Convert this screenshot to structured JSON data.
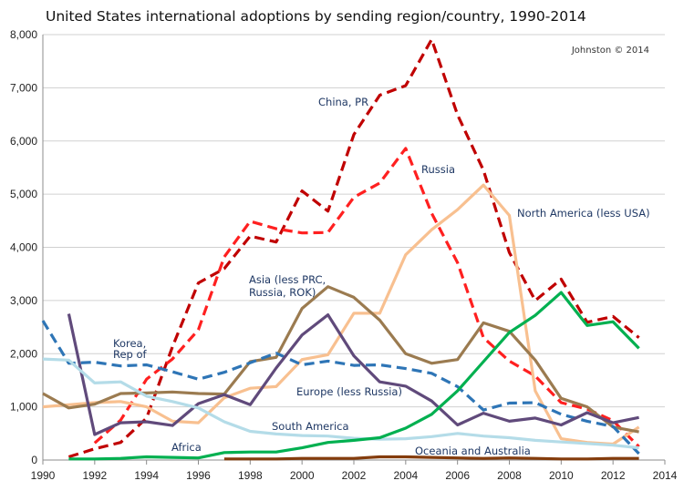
{
  "chart_data": {
    "type": "line",
    "title": "United States international adoptions by sending region/country, 1990-2014",
    "credit": "Johnston © 2014",
    "xlabel": "",
    "ylabel": "",
    "xlim": [
      1990,
      2014
    ],
    "ylim": [
      0,
      8000
    ],
    "x_ticks": [
      1990,
      1992,
      1994,
      1996,
      1998,
      2000,
      2002,
      2004,
      2006,
      2008,
      2010,
      2012,
      2014
    ],
    "y_ticks": [
      0,
      1000,
      2000,
      3000,
      4000,
      5000,
      6000,
      7000,
      8000
    ],
    "y_tick_labels": [
      "0",
      "1,000",
      "2,000",
      "3,000",
      "4,000",
      "5,000",
      "6,000",
      "7,000",
      "8,000"
    ],
    "grid": "horizontal",
    "legend": "none (inline labels)",
    "series": [
      {
        "name": "China, PR",
        "color": "#c00000",
        "dash": true,
        "x": [
          1991,
          1992,
          1993,
          1994,
          1995,
          1996,
          1997,
          1998,
          1999,
          2000,
          2001,
          2002,
          2003,
          2004,
          2005,
          2006,
          2007,
          2008,
          2009,
          2010,
          2011,
          2012,
          2013
        ],
        "values": [
          60,
          210,
          330,
          790,
          2130,
          3330,
          3600,
          4210,
          4100,
          5060,
          4680,
          6120,
          6860,
          7040,
          7910,
          6490,
          5450,
          3900,
          3000,
          3400,
          2590,
          2700,
          2300
        ]
      },
      {
        "name": "Russia",
        "color": "#ff2020",
        "dash": true,
        "x": [
          1992,
          1993,
          1994,
          1995,
          1996,
          1997,
          1998,
          1999,
          2000,
          2001,
          2002,
          2003,
          2004,
          2005,
          2006,
          2007,
          2008,
          2009,
          2010,
          2011,
          2012,
          2013
        ],
        "values": [
          320,
          750,
          1520,
          1900,
          2450,
          3820,
          4490,
          4350,
          4270,
          4280,
          4940,
          5210,
          5860,
          4640,
          3710,
          2300,
          1860,
          1580,
          1080,
          960,
          740,
          250
        ]
      },
      {
        "name": "North America (less USA)",
        "color": "#f8c090",
        "dash": false,
        "x": [
          1990,
          1991,
          1992,
          1993,
          1994,
          1995,
          1996,
          1997,
          1998,
          1999,
          2000,
          2001,
          2002,
          2003,
          2004,
          2005,
          2006,
          2007,
          2008,
          2009,
          2010,
          2011,
          2012,
          2013
        ],
        "values": [
          1000,
          1040,
          1080,
          1100,
          1000,
          730,
          700,
          1170,
          1350,
          1380,
          1890,
          1980,
          2760,
          2760,
          3860,
          4330,
          4710,
          5170,
          4600,
          1300,
          400,
          330,
          300,
          620
        ]
      },
      {
        "name": "Asia (less PRC, Russia, ROK)",
        "color": "#9b7b50",
        "dash": false,
        "x": [
          1990,
          1991,
          1992,
          1993,
          1994,
          1995,
          1996,
          1997,
          1998,
          1999,
          2000,
          2001,
          2002,
          2003,
          2004,
          2005,
          2006,
          2007,
          2008,
          2009,
          2010,
          2011,
          2012,
          2013
        ],
        "values": [
          1250,
          980,
          1050,
          1250,
          1260,
          1280,
          1250,
          1240,
          1850,
          1930,
          2850,
          3260,
          3060,
          2630,
          2000,
          1820,
          1890,
          2580,
          2420,
          1880,
          1160,
          1000,
          620,
          530
        ]
      },
      {
        "name": "Korea, Rep of",
        "color": "#2e75b6",
        "dash": true,
        "x": [
          1990,
          1991,
          1992,
          1993,
          1994,
          1995,
          1996,
          1997,
          1998,
          1999,
          2000,
          2001,
          2002,
          2003,
          2004,
          2005,
          2006,
          2007,
          2008,
          2009,
          2010,
          2011,
          2012,
          2013
        ],
        "values": [
          2620,
          1820,
          1840,
          1770,
          1790,
          1660,
          1520,
          1650,
          1830,
          2010,
          1790,
          1860,
          1780,
          1790,
          1720,
          1630,
          1380,
          940,
          1070,
          1080,
          860,
          730,
          630,
          120
        ]
      },
      {
        "name": "Europe (less Russia)",
        "color": "#604a7b",
        "dash": false,
        "x": [
          1991,
          1992,
          1993,
          1994,
          1995,
          1996,
          1997,
          1998,
          1999,
          2000,
          2001,
          2002,
          2003,
          2004,
          2005,
          2006,
          2007,
          2008,
          2009,
          2010,
          2011,
          2012,
          2013
        ],
        "values": [
          2750,
          480,
          700,
          720,
          650,
          1060,
          1230,
          1040,
          1730,
          2350,
          2730,
          1960,
          1470,
          1390,
          1110,
          660,
          880,
          730,
          790,
          660,
          890,
          700,
          800
        ]
      },
      {
        "name": "South America",
        "color": "#b4dce8",
        "dash": false,
        "x": [
          1990,
          1991,
          1992,
          1993,
          1994,
          1995,
          1996,
          1997,
          1998,
          1999,
          2000,
          2001,
          2002,
          2003,
          2004,
          2005,
          2006,
          2007,
          2008,
          2009,
          2010,
          2011,
          2012,
          2013
        ],
        "values": [
          1900,
          1880,
          1450,
          1470,
          1200,
          1100,
          980,
          720,
          540,
          490,
          460,
          450,
          410,
          390,
          400,
          440,
          500,
          450,
          420,
          370,
          340,
          310,
          280,
          230
        ]
      },
      {
        "name": "Africa",
        "color": "#00b050",
        "dash": false,
        "x": [
          1991,
          1992,
          1993,
          1994,
          1995,
          1996,
          1997,
          1998,
          1999,
          2000,
          2001,
          2002,
          2003,
          2004,
          2005,
          2006,
          2007,
          2008,
          2009,
          2010,
          2011,
          2012,
          2013
        ],
        "values": [
          20,
          20,
          30,
          60,
          50,
          40,
          140,
          150,
          150,
          230,
          330,
          370,
          420,
          600,
          860,
          1300,
          1850,
          2400,
          2720,
          3150,
          2530,
          2600,
          2100
        ]
      },
      {
        "name": "Oceania and Australia",
        "color": "#843c0c",
        "dash": false,
        "x": [
          1997,
          1998,
          1999,
          2000,
          2001,
          2002,
          2003,
          2004,
          2005,
          2006,
          2007,
          2008,
          2009,
          2010,
          2011,
          2012,
          2013
        ],
        "values": [
          20,
          20,
          20,
          30,
          30,
          30,
          60,
          60,
          50,
          40,
          30,
          40,
          30,
          20,
          20,
          30,
          30
        ]
      }
    ],
    "annotations": [
      {
        "text": "China, PR",
        "series": "China, PR"
      },
      {
        "text": "Russia",
        "series": "Russia"
      },
      {
        "text": "North America (less USA)",
        "series": "North America (less USA)"
      },
      {
        "text": "Asia (less PRC,",
        "series": "Asia (less PRC, Russia, ROK)"
      },
      {
        "text": "Russia, ROK)",
        "series": "Asia (less PRC, Russia, ROK)"
      },
      {
        "text": "Korea,",
        "series": "Korea, Rep of"
      },
      {
        "text": "Rep of",
        "series": "Korea, Rep of"
      },
      {
        "text": "Europe (less Russia)",
        "series": "Europe (less Russia)"
      },
      {
        "text": "South America",
        "series": "South America"
      },
      {
        "text": "Africa",
        "series": "Africa"
      },
      {
        "text": "Oceania and Australia",
        "series": "Oceania and Australia"
      }
    ]
  }
}
